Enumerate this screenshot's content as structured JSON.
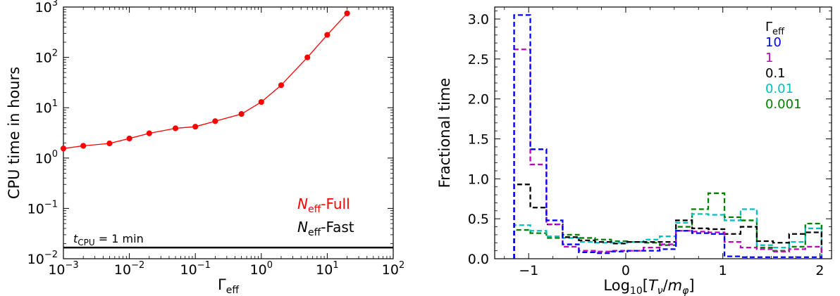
{
  "chart_data": [
    {
      "type": "line",
      "xlabel": "Γ",
      "xlabel_sub": "eff",
      "ylabel": "CPU time in hours",
      "xscale": "log",
      "yscale": "log",
      "xlim": [
        0.001,
        100
      ],
      "ylim": [
        0.01,
        1000
      ],
      "x_ticks": [
        {
          "base": "10",
          "exp": "−3"
        },
        {
          "base": "10",
          "exp": "−2"
        },
        {
          "base": "10",
          "exp": "−1"
        },
        {
          "base": "10",
          "exp": "0"
        },
        {
          "base": "10",
          "exp": "1"
        },
        {
          "base": "10",
          "exp": "2"
        }
      ],
      "y_ticks": [
        {
          "base": "10",
          "exp": "−2"
        },
        {
          "base": "10",
          "exp": "−1"
        },
        {
          "base": "10",
          "exp": "0"
        },
        {
          "base": "10",
          "exp": "1"
        },
        {
          "base": "10",
          "exp": "2"
        },
        {
          "base": "10",
          "exp": "3"
        }
      ],
      "series": [
        {
          "name": "Neff-Full",
          "color": "#ff0000",
          "x": [
            0.001,
            0.002,
            0.005,
            0.01,
            0.02,
            0.05,
            0.1,
            0.2,
            0.5,
            1,
            2,
            5,
            10,
            20
          ],
          "y": [
            1.55,
            1.75,
            1.95,
            2.45,
            3.1,
            3.9,
            4.2,
            5.4,
            7.5,
            13,
            28,
            100,
            280,
            750
          ]
        }
      ],
      "reference_line": {
        "y": 0.01667,
        "color": "#000000"
      },
      "annotation": {
        "t": "t",
        "sub": "CPU",
        "text": " = 1 min"
      },
      "legend": [
        {
          "n": "N",
          "sub": "eff",
          "rest": "-Full",
          "color": "#ff0000"
        },
        {
          "n": "N",
          "sub": "eff",
          "rest": "-Fast",
          "color": "#000000"
        }
      ],
      "legend_position": "bottom-right",
      "grid": false
    },
    {
      "type": "histogram",
      "xlabel": "Log",
      "xlabel_sub": "10",
      "xlabel_rest_a": "[T",
      "xlabel_sub2": "ν",
      "xlabel_rest_b": "/m",
      "xlabel_sub3": "φ",
      "xlabel_end": "]",
      "ylabel": "Fractional time",
      "xlim": [
        -1.35,
        2.12
      ],
      "ylim": [
        0,
        3.15
      ],
      "x_ticks": [
        "−1",
        "0",
        "1",
        "2"
      ],
      "x_tick_values": [
        -1,
        0,
        1,
        2
      ],
      "y_ticks": [
        "0.0",
        "0.5",
        "1.0",
        "1.5",
        "2.0",
        "2.5",
        "3.0"
      ],
      "y_tick_values": [
        0,
        0.5,
        1,
        1.5,
        2,
        2.5,
        3
      ],
      "bin_edges": [
        -1.15,
        -0.983,
        -0.817,
        -0.65,
        -0.483,
        -0.317,
        -0.15,
        0.017,
        0.183,
        0.35,
        0.517,
        0.683,
        0.85,
        1.017,
        1.183,
        1.35,
        1.517,
        1.683,
        1.85,
        2.017
      ],
      "legend_title": "Γ",
      "legend_title_sub": "eff",
      "legend_position": "top-right",
      "grid": false,
      "series": [
        {
          "name": "10",
          "color": "#0000ff",
          "values": [
            3.05,
            1.37,
            0.48,
            0.18,
            0.08,
            0.07,
            0.09,
            0.1,
            0.1,
            0.12,
            0.35,
            0.32,
            0.31,
            0.03,
            0.02,
            0.02,
            0.02,
            0.02,
            0.02
          ]
        },
        {
          "name": "1",
          "color": "#bf00bf",
          "values": [
            2.62,
            1.18,
            0.43,
            0.15,
            0.1,
            0.09,
            0.1,
            0.1,
            0.14,
            0.18,
            0.35,
            0.34,
            0.33,
            0.21,
            0.14,
            0.12,
            0.09,
            0.12,
            0.15
          ]
        },
        {
          "name": "0.1",
          "color": "#000000",
          "values": [
            0.93,
            0.64,
            0.43,
            0.27,
            0.23,
            0.21,
            0.19,
            0.21,
            0.21,
            0.21,
            0.48,
            0.38,
            0.37,
            0.31,
            0.4,
            0.22,
            0.2,
            0.31,
            0.33
          ]
        },
        {
          "name": "0.01",
          "color": "#00bfbf",
          "values": [
            0.42,
            0.35,
            0.28,
            0.26,
            0.21,
            0.2,
            0.2,
            0.21,
            0.24,
            0.28,
            0.45,
            0.56,
            0.55,
            0.48,
            0.62,
            0.17,
            0.14,
            0.21,
            0.38
          ]
        },
        {
          "name": "0.001",
          "color": "#008000",
          "values": [
            0.36,
            0.32,
            0.26,
            0.3,
            0.26,
            0.24,
            0.22,
            0.21,
            0.2,
            0.17,
            0.4,
            0.62,
            0.82,
            0.52,
            0.48,
            0.14,
            0.1,
            0.15,
            0.44
          ]
        }
      ]
    }
  ]
}
